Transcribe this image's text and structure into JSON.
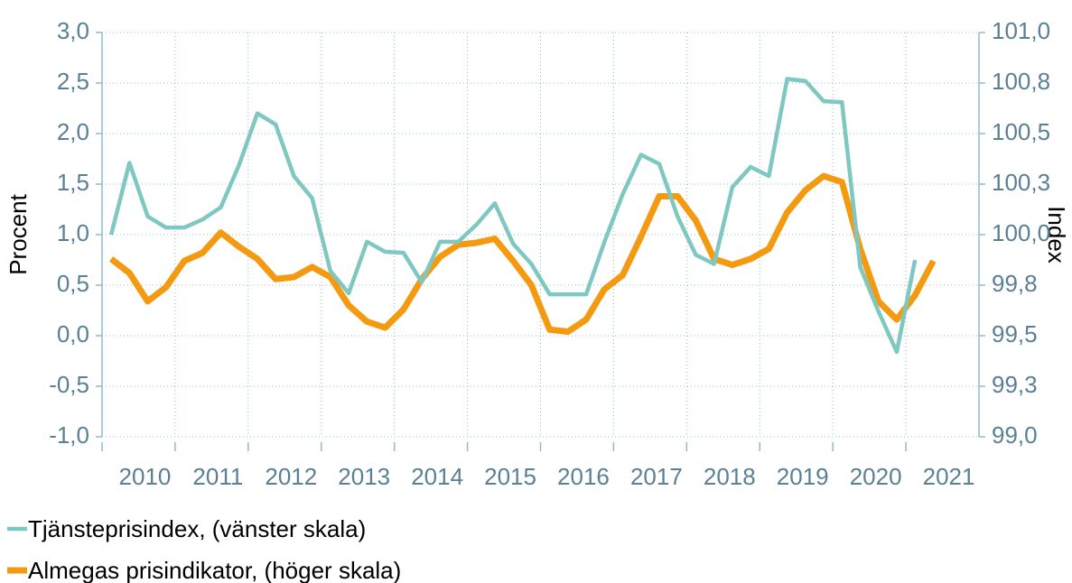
{
  "chart_data": {
    "type": "line",
    "x": [
      2010.125,
      2010.375,
      2010.625,
      2010.875,
      2011.125,
      2011.375,
      2011.625,
      2011.875,
      2012.125,
      2012.375,
      2012.625,
      2012.875,
      2013.125,
      2013.375,
      2013.625,
      2013.875,
      2014.125,
      2014.375,
      2014.625,
      2014.875,
      2015.125,
      2015.375,
      2015.625,
      2015.875,
      2016.125,
      2016.375,
      2016.625,
      2016.875,
      2017.125,
      2017.375,
      2017.625,
      2017.875,
      2018.125,
      2018.375,
      2018.625,
      2018.875,
      2019.125,
      2019.375,
      2019.625,
      2019.875,
      2020.125,
      2020.375,
      2020.625,
      2020.875,
      2021.125,
      2021.375
    ],
    "series": [
      {
        "name": "Tjänsteprisindex, (vänster skala)",
        "color": "#7fc8c2",
        "values": [
          1.0,
          1.71,
          1.18,
          1.07,
          1.07,
          1.15,
          1.27,
          1.69,
          2.2,
          2.09,
          1.58,
          1.36,
          0.64,
          0.42,
          0.93,
          0.83,
          0.82,
          0.53,
          0.93,
          0.93,
          1.1,
          1.31,
          0.91,
          0.71,
          0.41,
          0.41,
          0.41,
          0.93,
          1.4,
          1.79,
          1.7,
          1.18,
          0.8,
          0.71,
          1.47,
          1.67,
          1.58,
          2.54,
          2.52,
          2.32,
          2.31,
          0.68,
          0.24,
          -0.16,
          0.75,
          null
        ]
      },
      {
        "name": "Almegas prisindikator, (höger skala)",
        "color": "#f39a10",
        "axis": "y2",
        "values": [
          99.88,
          99.81,
          99.67,
          99.74,
          99.87,
          99.91,
          100.01,
          99.94,
          99.88,
          99.78,
          99.79,
          99.84,
          99.79,
          99.65,
          99.57,
          99.54,
          99.63,
          99.78,
          99.89,
          99.95,
          99.96,
          99.98,
          99.87,
          99.75,
          99.53,
          99.52,
          99.58,
          99.73,
          99.8,
          99.99,
          100.19,
          100.19,
          100.07,
          99.88,
          99.85,
          99.88,
          99.93,
          100.11,
          100.22,
          100.29,
          100.26,
          99.93,
          99.67,
          99.58,
          99.7,
          99.87
        ]
      }
    ],
    "ylabel": "Procent",
    "y2label": "Index",
    "xlim": [
      2010,
      2022
    ],
    "xticks": [
      {
        "value": 2010,
        "label": "2010"
      },
      {
        "value": 2011,
        "label": "2011"
      },
      {
        "value": 2012,
        "label": "2012"
      },
      {
        "value": 2013,
        "label": "2013"
      },
      {
        "value": 2014,
        "label": "2014"
      },
      {
        "value": 2015,
        "label": "2015"
      },
      {
        "value": 2016,
        "label": "2016"
      },
      {
        "value": 2017,
        "label": "2017"
      },
      {
        "value": 2018,
        "label": "2018"
      },
      {
        "value": 2019,
        "label": "2019"
      },
      {
        "value": 2020,
        "label": "2020"
      },
      {
        "value": 2021,
        "label": "2021"
      }
    ],
    "ylim": [
      -1,
      3
    ],
    "yticks": [
      {
        "value": 3,
        "label": "3,0"
      },
      {
        "value": 2.5,
        "label": "2,5"
      },
      {
        "value": 2,
        "label": "2,0"
      },
      {
        "value": 1.5,
        "label": "1,5"
      },
      {
        "value": 1,
        "label": "1,0"
      },
      {
        "value": 0.5,
        "label": "0,5"
      },
      {
        "value": 0,
        "label": "0,0"
      },
      {
        "value": -0.5,
        "label": "-0,5"
      },
      {
        "value": -1,
        "label": "-1,0"
      }
    ],
    "y2lim": [
      99,
      101
    ],
    "y2ticks": [
      {
        "value": 101,
        "label": "101,0"
      },
      {
        "value": 100.75,
        "label": "100,8"
      },
      {
        "value": 100.5,
        "label": "100,5"
      },
      {
        "value": 100.25,
        "label": "100,3"
      },
      {
        "value": 100,
        "label": "100,0"
      },
      {
        "value": 99.75,
        "label": "99,8"
      },
      {
        "value": 99.5,
        "label": "99,5"
      },
      {
        "value": 99.25,
        "label": "99,3"
      },
      {
        "value": 99,
        "label": "99,0"
      }
    ],
    "grid": true
  }
}
